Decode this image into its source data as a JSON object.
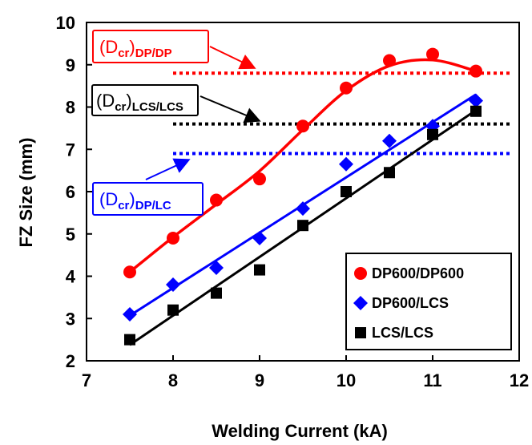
{
  "chart_data": {
    "type": "scatter",
    "xlabel": "Welding Current (kA)",
    "ylabel": "FZ Size (mm)",
    "xlim": [
      7,
      12
    ],
    "ylim": [
      2,
      10
    ],
    "xticks": [
      7,
      8,
      9,
      10,
      11,
      12
    ],
    "yticks": [
      2,
      3,
      4,
      5,
      6,
      7,
      8,
      9,
      10
    ],
    "grid": false,
    "legend_position": "bottom-right",
    "series": [
      {
        "name": "DP600/DP600",
        "marker": "circle",
        "color": "#ff0000",
        "x": [
          7.5,
          8.0,
          8.5,
          9.0,
          9.5,
          10.0,
          10.5,
          11.0,
          11.5
        ],
        "y": [
          4.1,
          4.9,
          5.8,
          6.3,
          7.55,
          8.45,
          9.1,
          9.25,
          8.85
        ],
        "fit": "smooth curve"
      },
      {
        "name": "DP600/LCS",
        "marker": "diamond",
        "color": "#0000ff",
        "x": [
          7.5,
          8.0,
          8.5,
          9.0,
          9.5,
          10.0,
          10.5,
          11.0,
          11.5
        ],
        "y": [
          3.1,
          3.8,
          4.2,
          4.9,
          5.6,
          6.65,
          7.2,
          7.55,
          8.15
        ],
        "fit": "linear"
      },
      {
        "name": "LCS/LCS",
        "marker": "square",
        "color": "#000000",
        "x": [
          7.5,
          8.0,
          8.5,
          9.0,
          9.5,
          10.0,
          10.5,
          11.0,
          11.5
        ],
        "y": [
          2.5,
          3.2,
          3.6,
          4.15,
          5.2,
          6.0,
          6.45,
          7.35,
          7.9
        ],
        "fit": "linear"
      }
    ],
    "reference_lines": [
      {
        "label_main": "(D",
        "label_sub1": "cr",
        "label_close": ")",
        "label_sub2": "DP/DP",
        "y": 8.8,
        "x_from": 8.0,
        "x_to": 12.0,
        "color": "#ff0000",
        "style": "dotted"
      },
      {
        "label_main": "(D",
        "label_sub1": "cr",
        "label_close": ")",
        "label_sub2": "LCS/LCS",
        "y": 7.6,
        "x_from": 8.0,
        "x_to": 12.0,
        "color": "#000000",
        "style": "dotted"
      },
      {
        "label_main": "(D",
        "label_sub1": "cr",
        "label_close": ")",
        "label_sub2": "DP/LC",
        "y": 6.9,
        "x_from": 8.0,
        "x_to": 12.0,
        "color": "#0000ff",
        "style": "dotted"
      }
    ]
  }
}
